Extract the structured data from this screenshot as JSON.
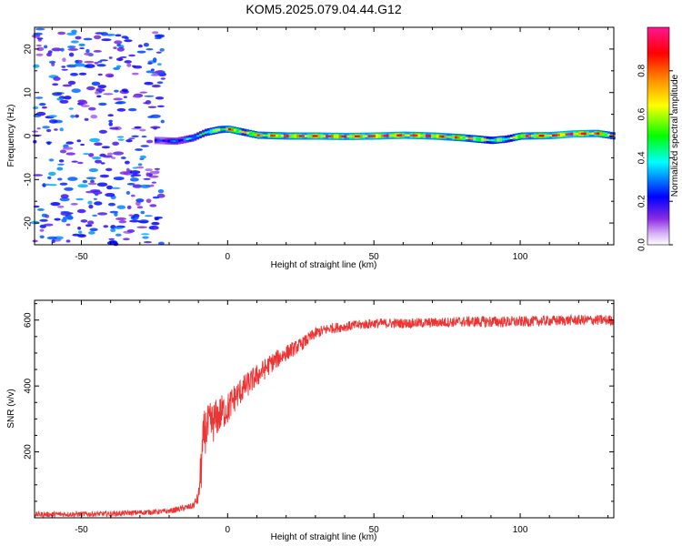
{
  "title": "KOM5.2025.079.04.44.G12",
  "chart_data": [
    {
      "type": "heatmap",
      "xlabel": "Height of straight line (km)",
      "ylabel": "Frequency (Hz)",
      "xlim": [
        -66,
        132
      ],
      "ylim": [
        -25,
        25
      ],
      "xticks": [
        -50,
        0,
        50,
        100
      ],
      "xtick_labels": [
        "-50",
        "0",
        "50",
        "100"
      ],
      "yticks": [
        -20,
        -10,
        0,
        10,
        20
      ],
      "ytick_labels": [
        "-20",
        "-10",
        "0",
        "10",
        "20"
      ],
      "colorbar": {
        "label": "Normalized spectral amplitude",
        "range": [
          0,
          1
        ],
        "ticks": [
          0.0,
          0.2,
          0.4,
          0.6,
          0.8
        ],
        "tick_labels": [
          "0.0",
          "0.2",
          "0.4",
          "0.6",
          "0.8"
        ],
        "colors": [
          "#ffffff",
          "#8a2be2",
          "#0000ff",
          "#00ffff",
          "#00ff00",
          "#ffff00",
          "#ff8c00",
          "#ff0000",
          "#ff1493"
        ]
      },
      "noise_region": {
        "x_range": [
          -66,
          -22
        ],
        "amplitude": 0.15
      },
      "signal_track": {
        "points": [
          {
            "x": -25,
            "freq": -1.0,
            "amp": 0.25
          },
          {
            "x": -18,
            "freq": -1.2,
            "amp": 0.3
          },
          {
            "x": -12,
            "freq": -0.4,
            "amp": 0.4
          },
          {
            "x": -8,
            "freq": 0.8,
            "amp": 0.5
          },
          {
            "x": -3,
            "freq": 1.5,
            "amp": 0.7
          },
          {
            "x": 0,
            "freq": 1.6,
            "amp": 0.85
          },
          {
            "x": 5,
            "freq": 0.9,
            "amp": 0.7
          },
          {
            "x": 10,
            "freq": 0.2,
            "amp": 0.8
          },
          {
            "x": 20,
            "freq": 0.0,
            "amp": 0.85
          },
          {
            "x": 30,
            "freq": 0.0,
            "amp": 0.9
          },
          {
            "x": 40,
            "freq": -0.1,
            "amp": 0.9
          },
          {
            "x": 50,
            "freq": 0.0,
            "amp": 0.92
          },
          {
            "x": 60,
            "freq": 0.2,
            "amp": 0.9
          },
          {
            "x": 70,
            "freq": 0.0,
            "amp": 0.88
          },
          {
            "x": 80,
            "freq": -0.4,
            "amp": 0.8
          },
          {
            "x": 90,
            "freq": -1.0,
            "amp": 0.6
          },
          {
            "x": 95,
            "freq": -0.7,
            "amp": 0.55
          },
          {
            "x": 100,
            "freq": 0.0,
            "amp": 0.8
          },
          {
            "x": 110,
            "freq": 0.1,
            "amp": 0.9
          },
          {
            "x": 118,
            "freq": 0.5,
            "amp": 0.95
          },
          {
            "x": 126,
            "freq": 0.6,
            "amp": 0.85
          },
          {
            "x": 132,
            "freq": 0.0,
            "amp": 0.7
          }
        ]
      }
    },
    {
      "type": "line",
      "xlabel": "Height of straight line (km)",
      "ylabel": "SNR (v/v)",
      "xlim": [
        -66,
        132
      ],
      "ylim": [
        0,
        660
      ],
      "xticks": [
        -50,
        0,
        50,
        100
      ],
      "xtick_labels": [
        "-50",
        "0",
        "50",
        "100"
      ],
      "yticks": [
        200,
        400,
        600
      ],
      "ytick_labels": [
        "200",
        "400",
        "600"
      ],
      "color": "#ee3333",
      "series": [
        {
          "x": [
            -66,
            -40,
            -20,
            -12,
            -10,
            -9,
            -8,
            -6,
            -4,
            -2,
            0,
            2,
            5,
            10,
            15,
            20,
            25,
            30,
            35,
            40,
            50,
            60,
            70,
            80,
            90,
            100,
            110,
            120,
            132
          ],
          "values": [
            10,
            12,
            20,
            35,
            60,
            160,
            260,
            280,
            300,
            320,
            330,
            360,
            390,
            430,
            470,
            500,
            525,
            560,
            575,
            580,
            590,
            590,
            592,
            595,
            595,
            595,
            598,
            600,
            600
          ],
          "noise": [
            8,
            8,
            8,
            10,
            20,
            80,
            70,
            70,
            60,
            55,
            50,
            45,
            40,
            35,
            30,
            25,
            20,
            18,
            16,
            15,
            15,
            15,
            15,
            16,
            18,
            16,
            16,
            16,
            16
          ]
        }
      ]
    }
  ]
}
